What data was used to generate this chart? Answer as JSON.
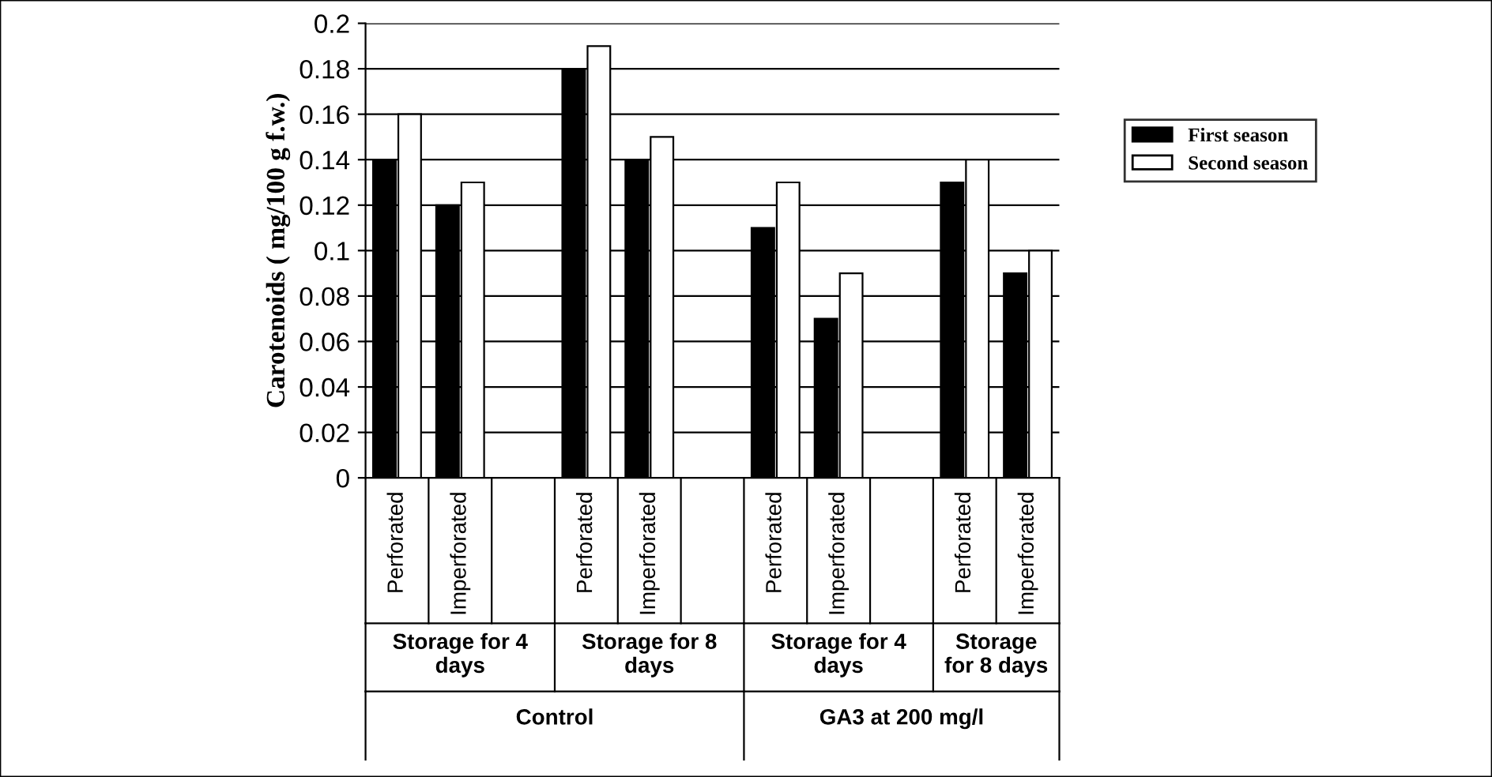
{
  "chart_data": {
    "type": "bar",
    "ylabel": "Carotenoids ( mg/100 g f.w.)",
    "categories": [
      "Perforated",
      "Imperforated",
      null,
      "Perforated",
      "Imperforated",
      null,
      "Perforated",
      "Imperforated",
      null,
      "Perforated",
      "Imperforated"
    ],
    "series": [
      {
        "name": "First season",
        "color": "#000000",
        "values": [
          0.14,
          0.12,
          null,
          0.18,
          0.14,
          null,
          0.11,
          0.07,
          null,
          0.13,
          0.09
        ]
      },
      {
        "name": "Second season",
        "color": "#ffffff",
        "values": [
          0.16,
          0.13,
          null,
          0.19,
          0.15,
          null,
          0.13,
          0.09,
          null,
          0.14,
          0.1
        ]
      }
    ],
    "ylim": [
      0,
      0.2
    ],
    "yticks": [
      0,
      0.02,
      0.04,
      0.06,
      0.08,
      0.1,
      0.12,
      0.14,
      0.16,
      0.18,
      0.2
    ],
    "grid": "y",
    "legend": "right",
    "annotations": [
      "Storage for 4\ndays",
      "Storage for 8\ndays",
      "Storage for 4\ndays",
      "Storage\nfor 8 days",
      "Control",
      "GA3 at 200 mg/l"
    ]
  }
}
